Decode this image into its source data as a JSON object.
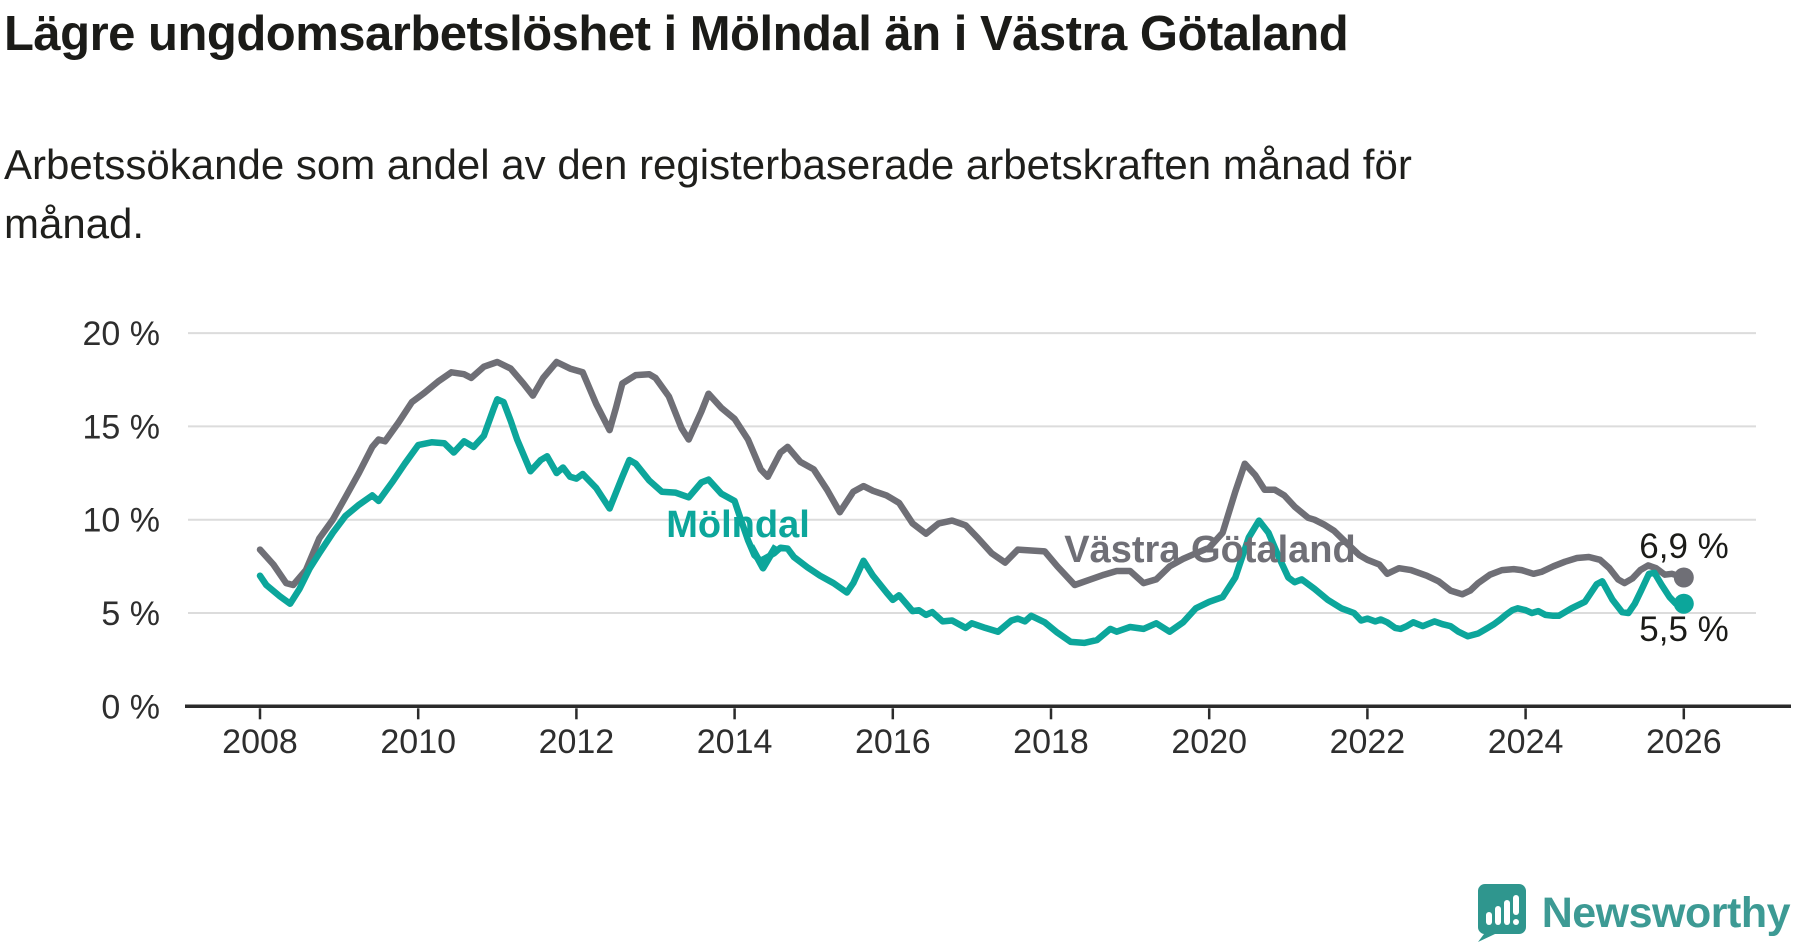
{
  "chart_data": {
    "type": "line",
    "title": "Lägre ungdomsarbetslöshet i Mölndal än i Västra Götaland",
    "subtitle": "Arbetssökande som andel av den registerbaserade arbetskraften månad för månad.",
    "x_axis": {
      "ticks": [
        2008,
        2010,
        2012,
        2014,
        2016,
        2018,
        2020,
        2022,
        2024,
        2026
      ],
      "labels": [
        "2008",
        "2010",
        "2012",
        "2014",
        "2016",
        "2018",
        "2020",
        "2022",
        "2024",
        "2026"
      ],
      "range": [
        2007.1,
        2026.9
      ]
    },
    "y_axis": {
      "ticks": [
        0,
        5,
        10,
        15,
        20
      ],
      "labels": [
        "0 %",
        "5 %",
        "10 %",
        "15 %",
        "20 %"
      ],
      "range": [
        0,
        21
      ],
      "unit": "%"
    },
    "grid_color": "#DCDCDC",
    "axis_color": "#2B2B2B",
    "tick_label_color": "#2E2E2E",
    "value_label_color": "#1B1B18",
    "legend_position": "inline-annotations",
    "series": [
      {
        "name": "Västra Götaland",
        "color": "#6F6F76",
        "end_label": "6,9 %",
        "end_value": 6.9,
        "data": [
          [
            2008.0,
            8.4
          ],
          [
            2008.17,
            7.6
          ],
          [
            2008.33,
            6.6
          ],
          [
            2008.42,
            6.5
          ],
          [
            2008.58,
            7.3
          ],
          [
            2008.75,
            9.0
          ],
          [
            2008.92,
            10.0
          ],
          [
            2009.08,
            11.2
          ],
          [
            2009.25,
            12.5
          ],
          [
            2009.42,
            13.9
          ],
          [
            2009.5,
            14.3
          ],
          [
            2009.58,
            14.2
          ],
          [
            2009.75,
            15.2
          ],
          [
            2009.92,
            16.3
          ],
          [
            2010.08,
            16.8
          ],
          [
            2010.25,
            17.4
          ],
          [
            2010.42,
            17.9
          ],
          [
            2010.58,
            17.8
          ],
          [
            2010.67,
            17.6
          ],
          [
            2010.83,
            18.2
          ],
          [
            2011.0,
            18.45
          ],
          [
            2011.17,
            18.1
          ],
          [
            2011.33,
            17.3
          ],
          [
            2011.45,
            16.65
          ],
          [
            2011.58,
            17.6
          ],
          [
            2011.75,
            18.45
          ],
          [
            2011.92,
            18.1
          ],
          [
            2012.08,
            17.9
          ],
          [
            2012.25,
            16.2
          ],
          [
            2012.42,
            14.8
          ],
          [
            2012.5,
            16.0
          ],
          [
            2012.58,
            17.3
          ],
          [
            2012.75,
            17.75
          ],
          [
            2012.92,
            17.8
          ],
          [
            2013.0,
            17.6
          ],
          [
            2013.17,
            16.6
          ],
          [
            2013.33,
            14.9
          ],
          [
            2013.42,
            14.3
          ],
          [
            2013.58,
            15.8
          ],
          [
            2013.67,
            16.75
          ],
          [
            2013.83,
            16.0
          ],
          [
            2014.0,
            15.4
          ],
          [
            2014.17,
            14.3
          ],
          [
            2014.33,
            12.7
          ],
          [
            2014.42,
            12.3
          ],
          [
            2014.58,
            13.6
          ],
          [
            2014.67,
            13.9
          ],
          [
            2014.83,
            13.1
          ],
          [
            2015.0,
            12.7
          ],
          [
            2015.17,
            11.6
          ],
          [
            2015.33,
            10.4
          ],
          [
            2015.5,
            11.5
          ],
          [
            2015.63,
            11.8
          ],
          [
            2015.75,
            11.55
          ],
          [
            2015.92,
            11.3
          ],
          [
            2016.08,
            10.9
          ],
          [
            2016.25,
            9.8
          ],
          [
            2016.42,
            9.25
          ],
          [
            2016.58,
            9.8
          ],
          [
            2016.75,
            9.95
          ],
          [
            2016.92,
            9.7
          ],
          [
            2017.08,
            9.0
          ],
          [
            2017.25,
            8.2
          ],
          [
            2017.42,
            7.7
          ],
          [
            2017.58,
            8.4
          ],
          [
            2017.75,
            8.35
          ],
          [
            2017.92,
            8.3
          ],
          [
            2018.08,
            7.5
          ],
          [
            2018.3,
            6.5
          ],
          [
            2018.5,
            6.8
          ],
          [
            2018.67,
            7.05
          ],
          [
            2018.83,
            7.25
          ],
          [
            2019.0,
            7.25
          ],
          [
            2019.17,
            6.6
          ],
          [
            2019.33,
            6.8
          ],
          [
            2019.5,
            7.5
          ],
          [
            2019.67,
            7.9
          ],
          [
            2019.83,
            8.2
          ],
          [
            2020.0,
            8.5
          ],
          [
            2020.17,
            9.3
          ],
          [
            2020.33,
            11.5
          ],
          [
            2020.45,
            13.0
          ],
          [
            2020.58,
            12.4
          ],
          [
            2020.7,
            11.6
          ],
          [
            2020.83,
            11.6
          ],
          [
            2020.95,
            11.3
          ],
          [
            2021.08,
            10.7
          ],
          [
            2021.25,
            10.1
          ],
          [
            2021.33,
            10.0
          ],
          [
            2021.45,
            9.75
          ],
          [
            2021.58,
            9.4
          ],
          [
            2021.75,
            8.7
          ],
          [
            2021.9,
            8.1
          ],
          [
            2022.0,
            7.85
          ],
          [
            2022.15,
            7.6
          ],
          [
            2022.25,
            7.1
          ],
          [
            2022.4,
            7.4
          ],
          [
            2022.55,
            7.3
          ],
          [
            2022.75,
            7.0
          ],
          [
            2022.9,
            6.7
          ],
          [
            2023.05,
            6.2
          ],
          [
            2023.2,
            6.0
          ],
          [
            2023.3,
            6.2
          ],
          [
            2023.4,
            6.6
          ],
          [
            2023.55,
            7.05
          ],
          [
            2023.7,
            7.3
          ],
          [
            2023.85,
            7.35
          ],
          [
            2023.95,
            7.3
          ],
          [
            2024.1,
            7.1
          ],
          [
            2024.2,
            7.2
          ],
          [
            2024.35,
            7.5
          ],
          [
            2024.5,
            7.75
          ],
          [
            2024.65,
            7.95
          ],
          [
            2024.8,
            8.0
          ],
          [
            2024.94,
            7.85
          ],
          [
            2025.06,
            7.4
          ],
          [
            2025.17,
            6.8
          ],
          [
            2025.25,
            6.6
          ],
          [
            2025.35,
            6.85
          ],
          [
            2025.45,
            7.3
          ],
          [
            2025.55,
            7.55
          ],
          [
            2025.65,
            7.4
          ],
          [
            2025.76,
            7.05
          ],
          [
            2025.85,
            7.1
          ],
          [
            2026.0,
            6.9
          ]
        ]
      },
      {
        "name": "Mölndal",
        "color": "#0CA69B",
        "end_label": "5,5 %",
        "end_value": 5.5,
        "data": [
          [
            2008.0,
            7.0
          ],
          [
            2008.08,
            6.5
          ],
          [
            2008.25,
            5.9
          ],
          [
            2008.38,
            5.5
          ],
          [
            2008.5,
            6.3
          ],
          [
            2008.63,
            7.4
          ],
          [
            2008.75,
            8.2
          ],
          [
            2008.92,
            9.3
          ],
          [
            2009.08,
            10.2
          ],
          [
            2009.25,
            10.8
          ],
          [
            2009.42,
            11.3
          ],
          [
            2009.5,
            11.0
          ],
          [
            2009.67,
            12.0
          ],
          [
            2009.83,
            13.0
          ],
          [
            2010.0,
            14.0
          ],
          [
            2010.17,
            14.15
          ],
          [
            2010.33,
            14.1
          ],
          [
            2010.45,
            13.6
          ],
          [
            2010.58,
            14.2
          ],
          [
            2010.7,
            13.9
          ],
          [
            2010.83,
            14.5
          ],
          [
            2010.95,
            15.9
          ],
          [
            2011.0,
            16.45
          ],
          [
            2011.08,
            16.3
          ],
          [
            2011.17,
            15.3
          ],
          [
            2011.25,
            14.3
          ],
          [
            2011.42,
            12.6
          ],
          [
            2011.55,
            13.2
          ],
          [
            2011.63,
            13.4
          ],
          [
            2011.75,
            12.5
          ],
          [
            2011.83,
            12.8
          ],
          [
            2011.92,
            12.3
          ],
          [
            2012.0,
            12.2
          ],
          [
            2012.08,
            12.45
          ],
          [
            2012.25,
            11.7
          ],
          [
            2012.42,
            10.6
          ],
          [
            2012.58,
            12.3
          ],
          [
            2012.67,
            13.2
          ],
          [
            2012.75,
            13.0
          ],
          [
            2012.92,
            12.1
          ],
          [
            2013.08,
            11.5
          ],
          [
            2013.25,
            11.45
          ],
          [
            2013.42,
            11.2
          ],
          [
            2013.58,
            12.0
          ],
          [
            2013.67,
            12.15
          ],
          [
            2013.83,
            11.4
          ],
          [
            2014.0,
            11.0
          ],
          [
            2014.08,
            10.0
          ],
          [
            2014.17,
            8.9
          ],
          [
            2014.25,
            8.1
          ],
          [
            2014.33,
            7.8
          ],
          [
            2014.5,
            8.2
          ],
          [
            2014.58,
            8.5
          ],
          [
            2014.67,
            8.45
          ],
          [
            2014.75,
            8.0
          ],
          [
            2014.92,
            7.45
          ],
          [
            2015.08,
            7.0
          ],
          [
            2015.25,
            6.6
          ],
          [
            2015.42,
            6.1
          ],
          [
            2015.5,
            6.6
          ],
          [
            2015.63,
            7.8
          ],
          [
            2015.75,
            7.0
          ],
          [
            2015.92,
            6.1
          ],
          [
            2016.0,
            5.7
          ],
          [
            2016.08,
            5.95
          ],
          [
            2016.25,
            5.1
          ],
          [
            2016.33,
            5.15
          ],
          [
            2016.42,
            4.9
          ],
          [
            2016.5,
            5.05
          ],
          [
            2016.63,
            4.55
          ],
          [
            2016.75,
            4.6
          ],
          [
            2016.92,
            4.2
          ],
          [
            2017.0,
            4.45
          ],
          [
            2017.17,
            4.2
          ],
          [
            2017.33,
            4.0
          ],
          [
            2017.5,
            4.6
          ],
          [
            2017.58,
            4.7
          ],
          [
            2017.67,
            4.55
          ],
          [
            2017.75,
            4.85
          ],
          [
            2017.92,
            4.5
          ],
          [
            2018.08,
            3.95
          ],
          [
            2018.25,
            3.45
          ],
          [
            2018.42,
            3.4
          ],
          [
            2018.58,
            3.55
          ],
          [
            2018.75,
            4.15
          ],
          [
            2018.83,
            4.0
          ],
          [
            2019.0,
            4.25
          ],
          [
            2019.17,
            4.15
          ],
          [
            2019.33,
            4.45
          ],
          [
            2019.5,
            4.0
          ],
          [
            2019.67,
            4.5
          ],
          [
            2019.83,
            5.25
          ],
          [
            2020.0,
            5.6
          ],
          [
            2020.17,
            5.85
          ],
          [
            2020.33,
            6.9
          ],
          [
            2020.5,
            9.05
          ],
          [
            2020.63,
            9.95
          ],
          [
            2020.75,
            9.3
          ],
          [
            2020.88,
            8.0
          ],
          [
            2021.0,
            6.9
          ],
          [
            2021.08,
            6.65
          ],
          [
            2021.17,
            6.8
          ],
          [
            2021.33,
            6.3
          ],
          [
            2021.5,
            5.7
          ],
          [
            2021.67,
            5.25
          ],
          [
            2021.83,
            5.0
          ],
          [
            2021.92,
            4.6
          ],
          [
            2022.0,
            4.7
          ],
          [
            2022.1,
            4.55
          ],
          [
            2022.17,
            4.65
          ],
          [
            2022.25,
            4.5
          ],
          [
            2022.35,
            4.2
          ],
          [
            2022.42,
            4.15
          ],
          [
            2022.5,
            4.3
          ],
          [
            2022.58,
            4.5
          ],
          [
            2022.7,
            4.3
          ],
          [
            2022.85,
            4.55
          ],
          [
            2022.95,
            4.4
          ],
          [
            2023.05,
            4.3
          ],
          [
            2023.15,
            4.0
          ],
          [
            2023.27,
            3.75
          ],
          [
            2023.4,
            3.9
          ],
          [
            2023.5,
            4.15
          ],
          [
            2023.6,
            4.4
          ],
          [
            2023.68,
            4.65
          ],
          [
            2023.75,
            4.9
          ],
          [
            2023.83,
            5.15
          ],
          [
            2023.9,
            5.25
          ],
          [
            2024.0,
            5.15
          ],
          [
            2024.08,
            5.0
          ],
          [
            2024.16,
            5.1
          ],
          [
            2024.25,
            4.9
          ],
          [
            2024.35,
            4.85
          ],
          [
            2024.42,
            4.85
          ],
          [
            2024.58,
            5.25
          ],
          [
            2024.75,
            5.6
          ],
          [
            2024.9,
            6.55
          ],
          [
            2024.97,
            6.7
          ],
          [
            2025.1,
            5.7
          ],
          [
            2025.22,
            5.05
          ],
          [
            2025.3,
            5.0
          ],
          [
            2025.38,
            5.5
          ],
          [
            2025.46,
            6.2
          ],
          [
            2025.56,
            7.1
          ],
          [
            2025.63,
            7.15
          ],
          [
            2025.72,
            6.5
          ],
          [
            2025.82,
            5.85
          ],
          [
            2025.9,
            5.5
          ],
          [
            2026.0,
            5.5
          ]
        ]
      }
    ]
  },
  "footer": {
    "brand": "Newsworthy",
    "brand_color": "#3D9A94",
    "logo_icon": "newsworthy-speech-bubble-chart-icon"
  }
}
